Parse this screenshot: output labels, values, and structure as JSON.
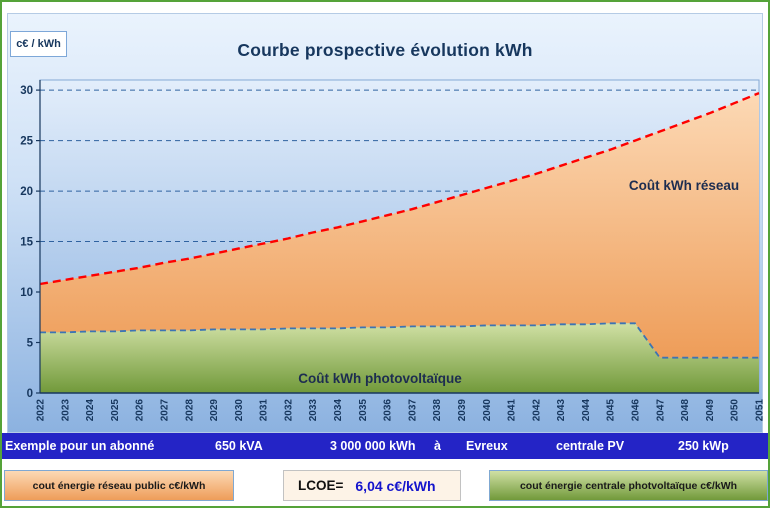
{
  "colors": {
    "outer_border": "#55a339",
    "title": "#17375e",
    "grid": "#2f62a0",
    "info_band_bg": "#2424c6",
    "lcoe_value": "#1414cc"
  },
  "chart_data": {
    "type": "area",
    "title": "Courbe prospective évolution kWh",
    "y_unit_label": "c€ / kWh",
    "xlabel": "",
    "ylabel": "c€ / kWh",
    "ylim": [
      0,
      30
    ],
    "yticks": [
      0,
      5,
      10,
      15,
      20,
      25,
      30
    ],
    "grid": "horizontal-dashed",
    "legend_position": "in-plot-labels",
    "x_categories": [
      2022,
      2023,
      2024,
      2025,
      2026,
      2027,
      2028,
      2029,
      2030,
      2031,
      2032,
      2033,
      2034,
      2035,
      2036,
      2037,
      2038,
      2039,
      2040,
      2041,
      2042,
      2043,
      2044,
      2045,
      2046,
      2047,
      2048,
      2049,
      2050,
      2051
    ],
    "series": [
      {
        "name": "Coût kWh réseau",
        "type": "area",
        "line_style": "dashed",
        "line_color": "#fe0000",
        "fill_top": "#fcd9b5",
        "fill_bottom": "#ee9d59",
        "values": [
          10.8,
          11.2,
          11.6,
          12.0,
          12.4,
          12.9,
          13.3,
          13.8,
          14.3,
          14.8,
          15.3,
          15.9,
          16.4,
          17.0,
          17.6,
          18.2,
          18.9,
          19.6,
          20.3,
          21.0,
          21.7,
          22.5,
          23.3,
          24.1,
          25.0,
          25.9,
          26.8,
          27.7,
          28.7,
          29.7
        ]
      },
      {
        "name": "Coût kWh photovoltaïque",
        "type": "area",
        "line_style": "dashed",
        "line_color": "#3c74b4",
        "fill_top": "#d0e0a4",
        "fill_bottom": "#71993a",
        "values": [
          6.0,
          6.0,
          6.1,
          6.1,
          6.2,
          6.2,
          6.2,
          6.3,
          6.3,
          6.3,
          6.4,
          6.4,
          6.4,
          6.5,
          6.5,
          6.6,
          6.6,
          6.6,
          6.7,
          6.7,
          6.7,
          6.8,
          6.8,
          6.9,
          6.9,
          3.5,
          3.5,
          3.5,
          3.5,
          3.5
        ]
      }
    ]
  },
  "info_band": {
    "items": [
      "Exemple pour un abonné",
      "650 kVA",
      "3 000 000 kWh",
      "à",
      "Evreux",
      "centrale PV",
      "250 kWp"
    ]
  },
  "legend": {
    "network_label": "cout énergie réseau public c€/kWh",
    "lcoe_label": "LCOE=",
    "lcoe_value": "6,04 c€/kWh",
    "pv_label": "cout énergie centrale photvoltaïque c€/kWh"
  }
}
